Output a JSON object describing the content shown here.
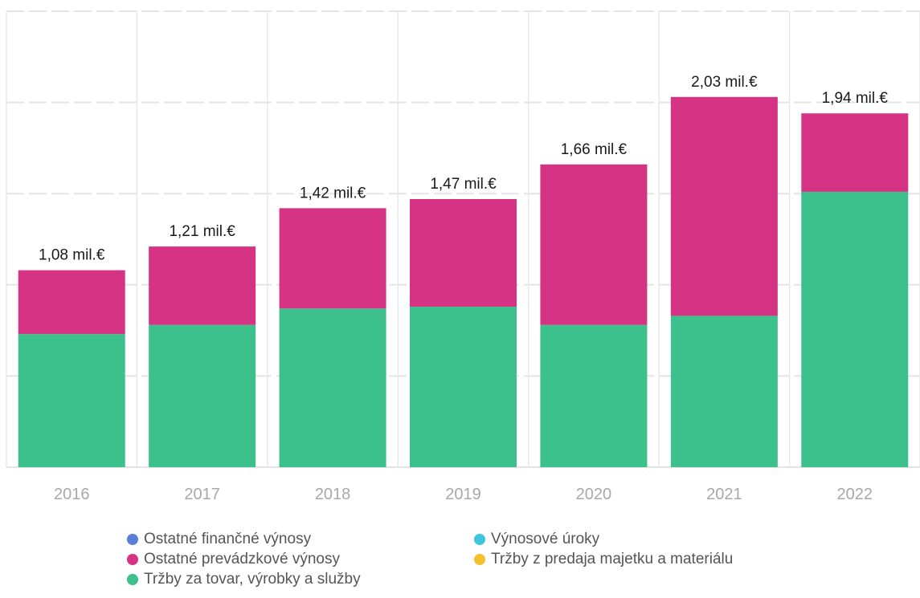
{
  "chart_data": {
    "type": "bar",
    "stacked": true,
    "categories": [
      "2016",
      "2017",
      "2018",
      "2019",
      "2020",
      "2021",
      "2022"
    ],
    "totals_labels": [
      "1,08 mil.€",
      "1,21 mil.€",
      "1,42 mil.€",
      "1,47 mil.€",
      "1,66 mil.€",
      "2,03 mil.€",
      "1,94 mil.€"
    ],
    "unit": "mil.€",
    "ylim": [
      0,
      2.5
    ],
    "grid": true,
    "legend_position": "bottom",
    "series": [
      {
        "name": "Tržby za tovar, výrobky a služby",
        "color": "#3cc08c",
        "values": [
          0.73,
          0.78,
          0.87,
          0.88,
          0.78,
          0.83,
          1.51
        ]
      },
      {
        "name": "Ostatné prevádzkové výnosy",
        "color": "#d63384",
        "values": [
          0.35,
          0.43,
          0.55,
          0.59,
          0.88,
          1.2,
          0.43
        ]
      },
      {
        "name": "Ostatné finančné výnosy",
        "color": "#5b7fd8",
        "values": [
          0,
          0,
          0,
          0,
          0,
          0,
          0
        ]
      },
      {
        "name": "Výnosové úroky",
        "color": "#3ec6dd",
        "values": [
          0,
          0,
          0,
          0,
          0,
          0,
          0
        ]
      },
      {
        "name": "Tržby z predaja majetku a materiálu",
        "color": "#f5c02e",
        "values": [
          0,
          0,
          0,
          0,
          0,
          0,
          0
        ]
      }
    ],
    "legend": [
      {
        "label": "Ostatné finančné výnosy",
        "color": "#5b7fd8"
      },
      {
        "label": "Výnosové úroky",
        "color": "#3ec6dd"
      },
      {
        "label": "Ostatné prevádzkové výnosy",
        "color": "#d63384"
      },
      {
        "label": "Tržby z predaja majetku a materiálu",
        "color": "#f5c02e"
      },
      {
        "label": "Tržby za tovar, výrobky a služby",
        "color": "#3cc08c"
      }
    ]
  }
}
